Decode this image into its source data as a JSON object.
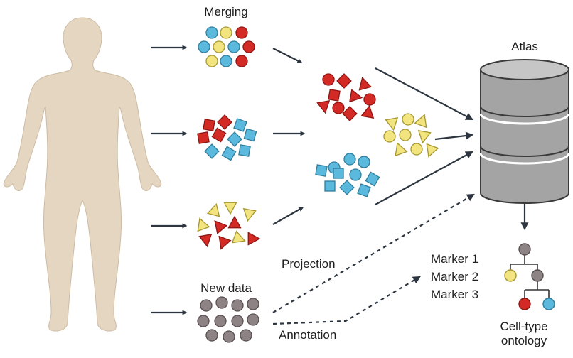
{
  "labels": {
    "merging": "Merging",
    "atlas": "Atlas",
    "new_data": "New data",
    "projection": "Projection",
    "annotation": "Annotation",
    "markers": [
      "Marker 1",
      "Marker 2",
      "Marker 3"
    ],
    "ontology_line1": "Cell-type",
    "ontology_line2": "ontology"
  },
  "colors": {
    "red": "#d42a26",
    "red_dark": "#8e1612",
    "blue": "#5ab9dc",
    "blue_dark": "#2f7e9d",
    "yellow": "#f2e47e",
    "yellow_dark": "#a7972f",
    "gray": "#8d8384",
    "gray_dark": "#574e4f",
    "body": "#e4d6c1",
    "body_edge": "#c9b8a0",
    "cylinder": "#a4a4a4",
    "cylinder_dark": "#6e6e6e",
    "arrow": "#2d3640"
  },
  "icons": [
    "human-body-silhouette",
    "database-cylinder-icon",
    "ontology-tree-icon"
  ]
}
